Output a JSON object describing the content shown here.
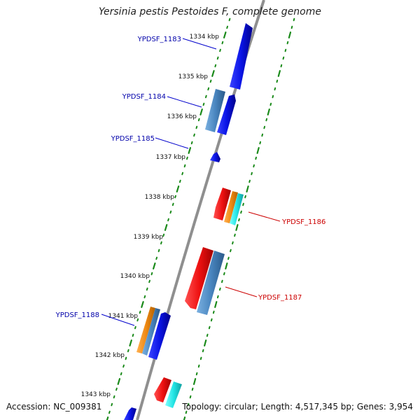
{
  "title": "Yersinia pestis Pestoides F, complete genome",
  "accession": "Accession: NC_009381",
  "topology": "Topology: circular; Length: 4,517,345 bp; Genes: 3,954",
  "colors": {
    "backbone": "#8a8a8a",
    "ticks": "#1a8a1a",
    "forward_label": "#0000aa",
    "reverse_label": "#cc0000",
    "blue": "#0a14e6",
    "steelblue": "#4a86c0",
    "red": "#ee1111",
    "orange": "#f08a14",
    "cyan": "#22e4e4"
  },
  "ticks": [
    "1334 kbp",
    "1335 kbp",
    "1336 kbp",
    "1337 kbp",
    "1338 kbp",
    "1339 kbp",
    "1340 kbp",
    "1341 kbp",
    "1342 kbp",
    "1343 kbp"
  ],
  "gene_labels": [
    {
      "text": "YPDSF_1183",
      "strand": "forward"
    },
    {
      "text": "YPDSF_1184",
      "strand": "forward"
    },
    {
      "text": "YPDSF_1185",
      "strand": "forward"
    },
    {
      "text": "YPDSF_1186",
      "strand": "reverse"
    },
    {
      "text": "YPDSF_1187",
      "strand": "reverse"
    },
    {
      "text": "YPDSF_1188",
      "strand": "forward"
    }
  ]
}
